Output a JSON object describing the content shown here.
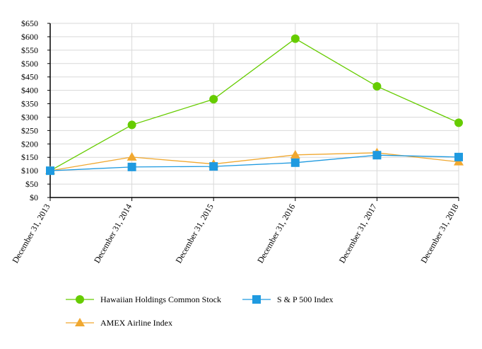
{
  "chart_data": {
    "type": "line",
    "title": "",
    "xlabel": "",
    "ylabel": "",
    "categories": [
      "December 31, 2013",
      "December 31, 2014",
      "December 31, 2015",
      "December 31, 2016",
      "December 31, 2017",
      "December 31, 2018"
    ],
    "ylim": [
      0,
      650
    ],
    "y_ticks": [
      0,
      50,
      100,
      150,
      200,
      250,
      300,
      350,
      400,
      450,
      500,
      550,
      600,
      650
    ],
    "y_tick_labels": [
      "$0",
      "$50",
      "$100",
      "$150",
      "$200",
      "$250",
      "$300",
      "$350",
      "$400",
      "$450",
      "$500",
      "$550",
      "$600",
      "$650"
    ],
    "grid": true,
    "legend_position": "bottom",
    "series": [
      {
        "name": "Hawaiian Holdings Common Stock",
        "values": [
          100,
          271,
          367,
          593,
          415,
          279
        ],
        "color": "#66cc00",
        "marker": "circle"
      },
      {
        "name": "S & P 500 Index",
        "values": [
          100,
          114,
          116,
          130,
          158,
          151
        ],
        "color": "#1f9ae0",
        "marker": "square"
      },
      {
        "name": "AMEX Airline Index",
        "values": [
          100,
          151,
          125,
          159,
          167,
          133
        ],
        "color": "#f0a830",
        "marker": "triangle"
      }
    ]
  }
}
